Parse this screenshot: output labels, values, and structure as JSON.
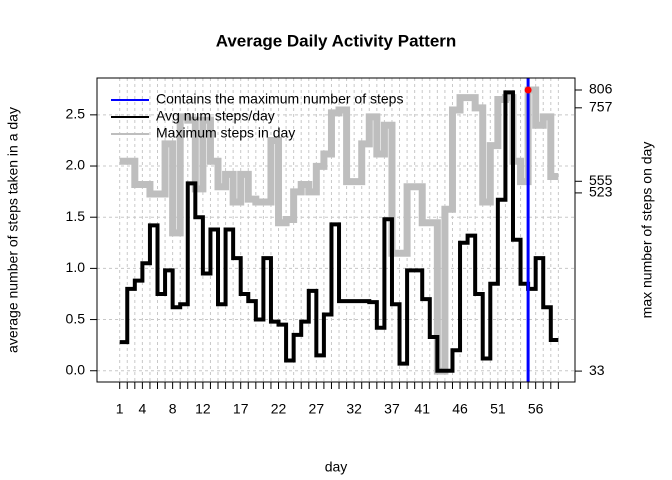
{
  "chart_data": {
    "type": "line",
    "title": "Average Daily Activity Pattern",
    "x_label": "day",
    "y_label": "average number of steps taken in a day",
    "y2_label": "max number of steps on day",
    "x": [
      1,
      2,
      3,
      4,
      5,
      6,
      7,
      8,
      9,
      10,
      11,
      12,
      13,
      14,
      15,
      16,
      17,
      18,
      19,
      20,
      21,
      22,
      23,
      24,
      25,
      26,
      27,
      28,
      29,
      30,
      31,
      32,
      33,
      34,
      35,
      36,
      37,
      38,
      39,
      40,
      41,
      42,
      43,
      44,
      45,
      46,
      47,
      48,
      49,
      50,
      51,
      52,
      53,
      54,
      55,
      56,
      57,
      58,
      59
    ],
    "series": [
      {
        "name": "Maximum steps in day",
        "color": "#bebebe",
        "axis": "y2",
        "values": [
          610,
          610,
          546,
          546,
          520,
          520,
          658,
          413,
          732,
          723,
          534,
          723,
          610,
          540,
          574,
          498,
          574,
          506,
          498,
          498,
          667,
          441,
          450,
          526,
          546,
          526,
          596,
          630,
          743,
          751,
          554,
          554,
          658,
          732,
          630,
          709,
          357,
          357,
          540,
          540,
          441,
          441,
          33,
          478,
          751,
          785,
          785,
          757,
          498,
          653,
          780,
          785,
          610,
          554,
          806,
          709,
          732,
          568,
          568
        ]
      },
      {
        "name": "Avg num steps/day",
        "color": "#000000",
        "values": [
          0.28,
          0.8,
          0.88,
          1.05,
          1.42,
          0.75,
          0.98,
          0.62,
          0.65,
          1.83,
          1.5,
          0.95,
          1.38,
          0.65,
          1.38,
          1.1,
          0.75,
          0.68,
          0.5,
          1.1,
          0.48,
          0.45,
          0.1,
          0.35,
          0.48,
          0.78,
          0.15,
          0.55,
          1.43,
          0.68,
          0.68,
          0.68,
          0.68,
          0.67,
          0.42,
          1.48,
          0.65,
          0.07,
          0.98,
          0.98,
          0.7,
          0.33,
          0,
          0,
          0.2,
          1.25,
          1.32,
          0.75,
          0.12,
          0.85,
          1.67,
          2.72,
          1.28,
          0.85,
          0.8,
          1.1,
          0.62,
          0.3,
          0.3
        ]
      }
    ],
    "max_line": {
      "name": "Contains the maximum number of steps",
      "color": "#0000ff",
      "x": 55
    },
    "max_point": {
      "x": 55,
      "y": 806,
      "color": "#ff0000"
    },
    "xlim": [
      -2,
      61.2
    ],
    "ylim": [
      -0.11,
      2.86
    ],
    "y2lim": [
      3,
      839
    ],
    "xticks": [
      {
        "value": 1,
        "label": "1"
      },
      {
        "value": 2,
        "label": null
      },
      {
        "value": 3,
        "label": null
      },
      {
        "value": 4,
        "label": "4"
      },
      {
        "value": 5,
        "label": null
      },
      {
        "value": 6,
        "label": null
      },
      {
        "value": 7,
        "label": null
      },
      {
        "value": 8,
        "label": "8"
      },
      {
        "value": 9,
        "label": null
      },
      {
        "value": 10,
        "label": null
      },
      {
        "value": 11,
        "label": null
      },
      {
        "value": 12,
        "label": "12"
      },
      {
        "value": 13,
        "label": null
      },
      {
        "value": 14,
        "label": null
      },
      {
        "value": 15,
        "label": null
      },
      {
        "value": 16,
        "label": null
      },
      {
        "value": 17,
        "label": "17"
      },
      {
        "value": 18,
        "label": null
      },
      {
        "value": 19,
        "label": null
      },
      {
        "value": 20,
        "label": null
      },
      {
        "value": 21,
        "label": null
      },
      {
        "value": 22,
        "label": "22"
      },
      {
        "value": 23,
        "label": null
      },
      {
        "value": 24,
        "label": null
      },
      {
        "value": 25,
        "label": null
      },
      {
        "value": 26,
        "label": null
      },
      {
        "value": 27,
        "label": "27"
      },
      {
        "value": 28,
        "label": null
      },
      {
        "value": 29,
        "label": null
      },
      {
        "value": 30,
        "label": null
      },
      {
        "value": 31,
        "label": null
      },
      {
        "value": 32,
        "label": "32"
      },
      {
        "value": 33,
        "label": null
      },
      {
        "value": 34,
        "label": null
      },
      {
        "value": 35,
        "label": null
      },
      {
        "value": 36,
        "label": null
      },
      {
        "value": 37,
        "label": "37"
      },
      {
        "value": 38,
        "label": null
      },
      {
        "value": 39,
        "label": null
      },
      {
        "value": 40,
        "label": null
      },
      {
        "value": 41,
        "label": "41"
      },
      {
        "value": 42,
        "label": null
      },
      {
        "value": 43,
        "label": null
      },
      {
        "value": 44,
        "label": null
      },
      {
        "value": 45,
        "label": null
      },
      {
        "value": 46,
        "label": "46"
      },
      {
        "value": 47,
        "label": null
      },
      {
        "value": 48,
        "label": null
      },
      {
        "value": 49,
        "label": null
      },
      {
        "value": 50,
        "label": null
      },
      {
        "value": 51,
        "label": "51"
      },
      {
        "value": 52,
        "label": null
      },
      {
        "value": 53,
        "label": null
      },
      {
        "value": 54,
        "label": null
      },
      {
        "value": 55,
        "label": null
      },
      {
        "value": 56,
        "label": "56"
      },
      {
        "value": 57,
        "label": null
      },
      {
        "value": 58,
        "label": null
      },
      {
        "value": 59,
        "label": null
      }
    ],
    "yticks": [
      {
        "value": 0,
        "label": "0.0"
      },
      {
        "value": 0.5,
        "label": "0.5"
      },
      {
        "value": 1,
        "label": "1.0"
      },
      {
        "value": 1.5,
        "label": "1.5"
      },
      {
        "value": 2,
        "label": "2.0"
      },
      {
        "value": 2.5,
        "label": "2.5"
      }
    ],
    "y2ticks": [
      33,
      523,
      555,
      757,
      806
    ],
    "grid": true,
    "legend": "top-left"
  }
}
